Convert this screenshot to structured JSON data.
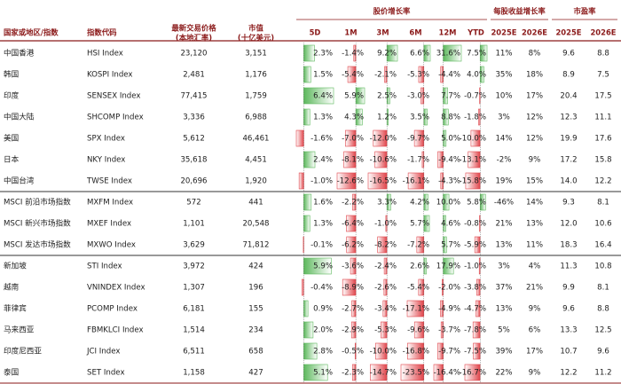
{
  "header": {
    "groups": [
      "股价增长率",
      "每股收益增长率",
      "市盈率"
    ],
    "columns": [
      "国家或地区/指数",
      "指数代码",
      "最新交易价格\n(本地汇率)",
      "市值\n(十亿美元)",
      "5D",
      "1M",
      "3M",
      "6M",
      "12M",
      "YTD",
      "2025E",
      "2026E",
      "2025E",
      "2026E"
    ]
  },
  "table": {
    "rows": [
      [
        "中国香港",
        "HSI Index",
        "23,120",
        "3,151",
        "2.3%",
        "-1.4%",
        "9.2%",
        "6.6%",
        "31.6%",
        "7.5%",
        "11%",
        "8%",
        "9.6",
        "8.8"
      ],
      [
        "韩国",
        "KOSPI Index",
        "2,481",
        "1,176",
        "1.5%",
        "-5.4%",
        "-2.1%",
        "-5.3%",
        "-4.4%",
        "4.0%",
        "35%",
        "18%",
        "8.9",
        "7.5"
      ],
      [
        "印度",
        "SENSEX Index",
        "77,415",
        "1,759",
        "6.4%",
        "5.9%",
        "2.5%",
        "-3.0%",
        "7.7%",
        "-0.7%",
        "10%",
        "17%",
        "20.4",
        "17.5"
      ],
      [
        "中国大陆",
        "SHCOMP Index",
        "3,336",
        "6,988",
        "1.3%",
        "4.3%",
        "1.2%",
        "3.5%",
        "8.8%",
        "-1.8%",
        "3%",
        "12%",
        "12.3",
        "11.1"
      ],
      [
        "美国",
        "SPX Index",
        "5,612",
        "46,461",
        "-1.6%",
        "-7.0%",
        "-12.0%",
        "-9.7%",
        "5.0%",
        "-10.0%",
        "14%",
        "12%",
        "19.9",
        "17.6"
      ],
      [
        "日本",
        "NKY Index",
        "35,618",
        "4,451",
        "2.4%",
        "-8.1%",
        "-10.6%",
        "-1.7%",
        "-9.4%",
        "-13.1%",
        "-2%",
        "9%",
        "17.2",
        "15.8"
      ],
      [
        "中国台湾",
        "TWSE Index",
        "20,696",
        "1,920",
        "-1.0%",
        "-12.6%",
        "-16.5%",
        "-16.1%",
        "-4.3%",
        "-15.8%",
        "19%",
        "15%",
        "14.0",
        "12.2"
      ],
      [
        "MSCI 前沿市场指数",
        "MXFM Index",
        "572",
        "441",
        "1.6%",
        "-2.2%",
        "3.3%",
        "4.2%",
        "10.0%",
        "5.8%",
        "-46%",
        "14%",
        "9.3",
        "8.1"
      ],
      [
        "MSCI 新兴市场指数",
        "MXEF Index",
        "1,101",
        "20,548",
        "1.3%",
        "-6.4%",
        "-1.0%",
        "5.7%",
        "4.6%",
        "-0.8%",
        "21%",
        "13%",
        "12.0",
        "10.6"
      ],
      [
        "MSCI 发达市场指数",
        "MXWO Index",
        "3,629",
        "71,812",
        "-0.1%",
        "-6.2%",
        "-8.2%",
        "-7.2%",
        "5.7%",
        "-5.9%",
        "13%",
        "11%",
        "18.3",
        "16.4"
      ],
      [
        "新加坡",
        "STI Index",
        "3,972",
        "424",
        "5.9%",
        "-3.6%",
        "-2.4%",
        "2.6%",
        "17.9%",
        "-1.0%",
        "3%",
        "4%",
        "11.3",
        "10.8"
      ],
      [
        "越南",
        "VNINDEX Index",
        "1,307",
        "196",
        "-0.4%",
        "-8.9%",
        "-2.6%",
        "-5.4%",
        "-2.0%",
        "-3.8%",
        "37%",
        "21%",
        "9.9",
        "8.1"
      ],
      [
        "菲律宾",
        "PCOMP Index",
        "6,181",
        "155",
        "0.9%",
        "-2.7%",
        "-3.4%",
        "-17.1%",
        "-4.9%",
        "-4.7%",
        "13%",
        "9%",
        "9.6",
        "8.8"
      ],
      [
        "马来西亚",
        "FBMKLCI Index",
        "1,514",
        "234",
        "2.0%",
        "-2.9%",
        "-5.3%",
        "-9.6%",
        "-3.7%",
        "-7.8%",
        "5%",
        "6%",
        "13.3",
        "12.5"
      ],
      [
        "印度尼西亚",
        "JCI Index",
        "6,511",
        "658",
        "2.8%",
        "-0.5%",
        "-10.0%",
        "-16.8%",
        "-9.7%",
        "-7.5%",
        "39%",
        "17%",
        "10.7",
        "9.6"
      ],
      [
        "泰国",
        "SET Index",
        "1,158",
        "427",
        "5.1%",
        "-2.3%",
        "-14.7%",
        "-23.5%",
        "-16.4%",
        "-16.7%",
        "22%",
        "9%",
        "12.2",
        "11.2"
      ]
    ]
  }
}
